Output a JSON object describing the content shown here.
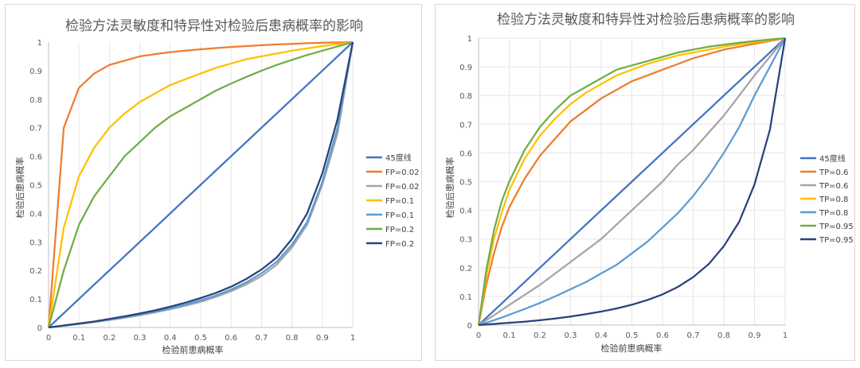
{
  "chart_data": [
    {
      "type": "line",
      "title": "检验方法灵敏度和特异性对检验后患病概率的影响",
      "xlabel": "检验前患病概率",
      "ylabel": "检验后患病概率",
      "xlim": [
        0,
        1
      ],
      "ylim": [
        0,
        1
      ],
      "x_ticks": [
        "0",
        "0.1",
        "0.2",
        "0.3",
        "0.4",
        "0.5",
        "0.6",
        "0.7",
        "0.8",
        "0.9",
        "1"
      ],
      "y_ticks": [
        "0",
        "0.1",
        "0.2",
        "0.3",
        "0.4",
        "0.5",
        "0.6",
        "0.7",
        "0.8",
        "0.9",
        "1"
      ],
      "grid": "vertical",
      "legend_position": "right",
      "x": [
        0,
        0.05,
        0.1,
        0.15,
        0.2,
        0.25,
        0.3,
        0.35,
        0.4,
        0.45,
        0.5,
        0.55,
        0.6,
        0.65,
        0.7,
        0.75,
        0.8,
        0.85,
        0.9,
        0.95,
        1
      ],
      "series": [
        {
          "name": "45度线",
          "color": "#4472c4",
          "values": [
            0,
            0.05,
            0.1,
            0.15,
            0.2,
            0.25,
            0.3,
            0.35,
            0.4,
            0.45,
            0.5,
            0.55,
            0.6,
            0.65,
            0.7,
            0.75,
            0.8,
            0.85,
            0.9,
            0.95,
            1
          ]
        },
        {
          "name": "FP=0.02",
          "color": "#ed7d31",
          "values": [
            0,
            0.7,
            0.84,
            0.89,
            0.92,
            0.935,
            0.95,
            0.958,
            0.965,
            0.97,
            0.975,
            0.979,
            0.983,
            0.986,
            0.989,
            0.992,
            0.994,
            0.996,
            0.998,
            0.999,
            1
          ]
        },
        {
          "name": "FP=0.02",
          "color": "#a5a5a5",
          "values": [
            0,
            0.006,
            0.012,
            0.019,
            0.026,
            0.034,
            0.043,
            0.053,
            0.064,
            0.076,
            0.09,
            0.107,
            0.127,
            0.151,
            0.18,
            0.22,
            0.28,
            0.36,
            0.5,
            0.68,
            1
          ]
        },
        {
          "name": "FP=0.1",
          "color": "#ffc000",
          "values": [
            0,
            0.35,
            0.53,
            0.63,
            0.7,
            0.75,
            0.79,
            0.82,
            0.85,
            0.87,
            0.89,
            0.91,
            0.925,
            0.94,
            0.95,
            0.96,
            0.97,
            0.978,
            0.986,
            0.993,
            1
          ]
        },
        {
          "name": "FP=0.1",
          "color": "#5b9bd5",
          "values": [
            0,
            0.006,
            0.013,
            0.02,
            0.028,
            0.036,
            0.045,
            0.055,
            0.067,
            0.08,
            0.095,
            0.112,
            0.133,
            0.158,
            0.19,
            0.23,
            0.29,
            0.37,
            0.51,
            0.7,
            1
          ]
        },
        {
          "name": "FP=0.2",
          "color": "#70ad47",
          "values": [
            0,
            0.2,
            0.36,
            0.46,
            0.53,
            0.6,
            0.65,
            0.7,
            0.74,
            0.77,
            0.8,
            0.83,
            0.855,
            0.878,
            0.9,
            0.92,
            0.938,
            0.955,
            0.97,
            0.985,
            1
          ]
        },
        {
          "name": "FP=0.2",
          "color": "#264478",
          "values": [
            0,
            0.007,
            0.014,
            0.021,
            0.03,
            0.039,
            0.049,
            0.06,
            0.073,
            0.087,
            0.103,
            0.121,
            0.143,
            0.17,
            0.203,
            0.245,
            0.31,
            0.4,
            0.54,
            0.73,
            1
          ]
        }
      ]
    },
    {
      "type": "line",
      "title": "检验方法灵敏度和特异性对检验后患病概率的影响",
      "xlabel": "检验前患病概率",
      "ylabel": "检验后患病概率",
      "xlim": [
        0,
        1
      ],
      "ylim": [
        0,
        1
      ],
      "x_ticks": [
        "0",
        "0.1",
        "0.2",
        "0.3",
        "0.4",
        "0.5",
        "0.6",
        "0.7",
        "0.8",
        "0.9",
        "1"
      ],
      "y_ticks": [
        "0",
        "0.1",
        "0.2",
        "0.3",
        "0.4",
        "0.5",
        "0.6",
        "0.7",
        "0.8",
        "0.9",
        "1"
      ],
      "grid": "both",
      "legend_position": "right",
      "x": [
        0,
        0.025,
        0.05,
        0.075,
        0.1,
        0.15,
        0.2,
        0.25,
        0.3,
        0.35,
        0.4,
        0.45,
        0.5,
        0.55,
        0.6,
        0.65,
        0.7,
        0.75,
        0.8,
        0.85,
        0.9,
        0.95,
        1
      ],
      "series": [
        {
          "name": "45度线",
          "color": "#4472c4",
          "values": [
            0,
            0.025,
            0.05,
            0.075,
            0.1,
            0.15,
            0.2,
            0.25,
            0.3,
            0.35,
            0.4,
            0.45,
            0.5,
            0.55,
            0.6,
            0.65,
            0.7,
            0.75,
            0.8,
            0.85,
            0.9,
            0.95,
            1
          ]
        },
        {
          "name": "TP=0.6",
          "color": "#ed7d31",
          "values": [
            0,
            0.14,
            0.25,
            0.34,
            0.41,
            0.51,
            0.59,
            0.65,
            0.71,
            0.75,
            0.79,
            0.82,
            0.85,
            0.87,
            0.89,
            0.91,
            0.93,
            0.945,
            0.96,
            0.97,
            0.98,
            0.99,
            1
          ]
        },
        {
          "name": "TP=0.6",
          "color": "#a5a5a5",
          "values": [
            0,
            0.017,
            0.034,
            0.052,
            0.07,
            0.105,
            0.14,
            0.18,
            0.22,
            0.26,
            0.3,
            0.35,
            0.4,
            0.45,
            0.5,
            0.56,
            0.61,
            0.67,
            0.73,
            0.8,
            0.87,
            0.935,
            1
          ]
        },
        {
          "name": "TP=0.8",
          "color": "#ffc000",
          "values": [
            0,
            0.17,
            0.3,
            0.39,
            0.47,
            0.58,
            0.66,
            0.72,
            0.77,
            0.81,
            0.84,
            0.87,
            0.89,
            0.91,
            0.925,
            0.94,
            0.95,
            0.96,
            0.97,
            0.978,
            0.986,
            0.993,
            1
          ]
        },
        {
          "name": "TP=0.8",
          "color": "#5b9bd5",
          "values": [
            0,
            0.008,
            0.017,
            0.026,
            0.036,
            0.056,
            0.077,
            0.1,
            0.125,
            0.15,
            0.18,
            0.21,
            0.25,
            0.29,
            0.34,
            0.39,
            0.45,
            0.52,
            0.6,
            0.69,
            0.8,
            0.9,
            1
          ]
        },
        {
          "name": "TP=0.95",
          "color": "#70ad47",
          "values": [
            0,
            0.19,
            0.33,
            0.43,
            0.5,
            0.61,
            0.69,
            0.75,
            0.8,
            0.83,
            0.86,
            0.89,
            0.905,
            0.92,
            0.935,
            0.95,
            0.96,
            0.97,
            0.977,
            0.984,
            0.99,
            0.995,
            1
          ]
        },
        {
          "name": "TP=0.95",
          "color": "#264478",
          "values": [
            0,
            0.002,
            0.004,
            0.006,
            0.008,
            0.012,
            0.017,
            0.023,
            0.03,
            0.038,
            0.047,
            0.058,
            0.071,
            0.087,
            0.107,
            0.133,
            0.167,
            0.212,
            0.275,
            0.36,
            0.49,
            0.68,
            1
          ]
        }
      ]
    }
  ]
}
